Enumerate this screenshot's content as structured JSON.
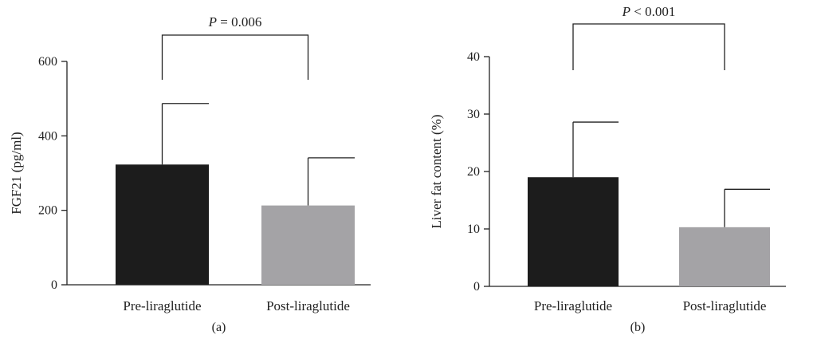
{
  "chart_data": [
    {
      "type": "bar",
      "panel_label": "(a)",
      "categories": [
        "Pre-liraglutide",
        "Post-liraglutide"
      ],
      "values": [
        323,
        213
      ],
      "error_upper": [
        487,
        341
      ],
      "ylabel": "FGF21 (pg/ml)",
      "ylim": [
        0,
        600
      ],
      "yticks": [
        "0",
        "200",
        "400",
        "600"
      ],
      "bar_colors": [
        "#1c1c1c",
        "#a4a3a6"
      ],
      "significance": {
        "p_symbol": "P",
        "text": " = 0.006"
      },
      "grid": false,
      "legend": "none"
    },
    {
      "type": "bar",
      "panel_label": "(b)",
      "categories": [
        "Pre-liraglutide",
        "Post-liraglutide"
      ],
      "values": [
        19,
        10.3
      ],
      "error_upper": [
        28.6,
        16.9
      ],
      "ylabel": "Liver fat content (%)",
      "ylim": [
        0,
        40
      ],
      "yticks": [
        "0",
        "10",
        "20",
        "30",
        "40"
      ],
      "bar_colors": [
        "#1c1c1c",
        "#a4a3a6"
      ],
      "significance": {
        "p_symbol": "P",
        "text": " < 0.001"
      },
      "grid": false,
      "legend": "none"
    }
  ]
}
